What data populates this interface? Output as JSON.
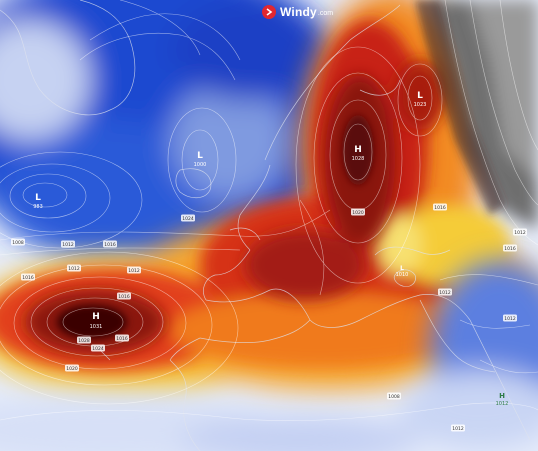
{
  "brand": {
    "name": "Windy",
    "tld": ".com",
    "logo_icon": "windy-logo-icon"
  },
  "pressure_centers": [
    {
      "id": "H_atl",
      "type": "H",
      "value": "1031"
    },
    {
      "id": "H_eur",
      "type": "H",
      "value": "1028"
    },
    {
      "id": "L_ice",
      "type": "L",
      "value": "1000"
    },
    {
      "id": "L_lab",
      "type": "L",
      "value": "983"
    },
    {
      "id": "L_rus",
      "type": "L",
      "value": "1023"
    },
    {
      "id": "L_ana",
      "type": "L",
      "value": "1010"
    },
    {
      "id": "H_ara",
      "type": "H",
      "value": "1012"
    }
  ],
  "isobar_labels": [
    "1016",
    "1012",
    "1016",
    "1008",
    "1012",
    "1012",
    "1016",
    "1016",
    "1020",
    "1024",
    "1028",
    "1024",
    "1020",
    "1016",
    "1012",
    "1016",
    "1012",
    "1012",
    "1008",
    "1012"
  ],
  "palette": {
    "cold_deep": "#0a2fb8",
    "cold": "#2a5ad8",
    "pale": "#c8d4f2",
    "yellow": "#f6d23a",
    "orange": "#f07a1c",
    "red": "#d0201a",
    "dark_red": "#5a0808",
    "grey": "#6f6f6f"
  }
}
